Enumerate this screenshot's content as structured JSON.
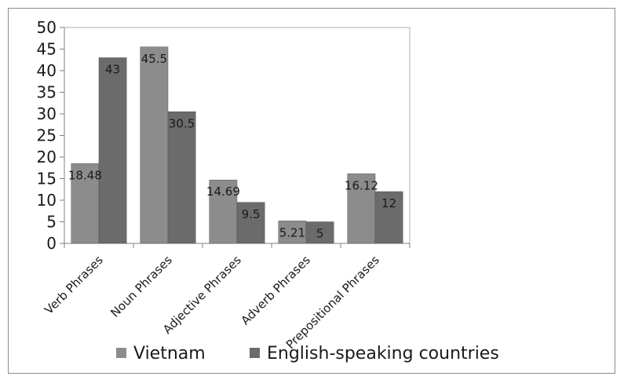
{
  "chart_data": {
    "type": "bar",
    "categories": [
      "Verb Phrases",
      "Noun Phrases",
      "Adjective Phrases",
      "Adverb Phrases",
      "Prepositional Phrases"
    ],
    "series": [
      {
        "name": "Vietnam",
        "values": [
          18.48,
          45.5,
          14.69,
          5.21,
          16.12
        ],
        "color": "#8c8c8c"
      },
      {
        "name": "English-speaking countries",
        "values": [
          43,
          30.5,
          9.5,
          5,
          12
        ],
        "color": "#6b6b6b"
      }
    ],
    "data_labels": [
      [
        "18.48",
        "45.5",
        "14.69",
        "5.21",
        "16.12"
      ],
      [
        "43",
        "30.5",
        "9.5",
        "5",
        "12"
      ]
    ],
    "yticks": [
      0,
      5,
      10,
      15,
      20,
      25,
      30,
      35,
      40,
      45,
      50
    ],
    "ylim": [
      0,
      50
    ],
    "title": "",
    "xlabel": "",
    "ylabel": "",
    "grid": false,
    "legend_position": "bottom"
  }
}
